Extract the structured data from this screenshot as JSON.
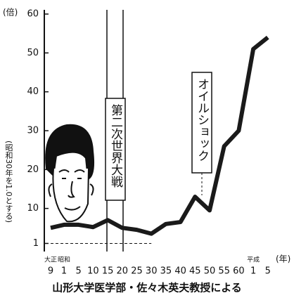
{
  "chart_data": {
    "type": "line",
    "y_unit": "(倍)",
    "x_unit": "(年)",
    "y_label": "(昭和30年を1.0とする)",
    "annotations": [
      "第二次世界大戦",
      "オイルショック"
    ],
    "credit": "山形大学医学部・佐々木英夫教授による",
    "categories": [
      "9",
      "1",
      "5",
      "10",
      "15",
      "20",
      "25",
      "30",
      "35",
      "40",
      "45",
      "50",
      "55",
      "60",
      "1",
      "5"
    ],
    "x_era_labels": [
      "大正",
      "昭和",
      null,
      null,
      null,
      null,
      null,
      null,
      null,
      null,
      null,
      null,
      null,
      null,
      "平成",
      null
    ],
    "series": [
      {
        "color": "#1a1a1a",
        "values": [
          5,
          5.8,
          5.8,
          5.2,
          7,
          5,
          4.5,
          3.5,
          6,
          6.5,
          13,
          9.5,
          26,
          30,
          51,
          54
        ]
      }
    ],
    "ylim": [
      0,
      60
    ],
    "yticks": [
      1,
      10,
      20,
      30,
      40,
      50,
      60
    ]
  }
}
